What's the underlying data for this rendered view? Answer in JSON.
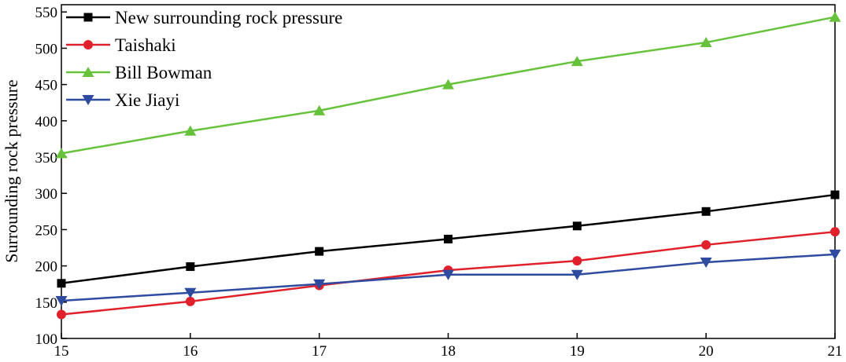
{
  "chart_data": {
    "type": "line",
    "title": "",
    "xlabel": "",
    "ylabel": "Surrounding rock pressure",
    "xlim": [
      15,
      21
    ],
    "ylim": [
      100,
      560
    ],
    "x": [
      15,
      16,
      17,
      18,
      19,
      20,
      21
    ],
    "x_tick_labels": [
      "15",
      "16",
      "17",
      "18",
      "19",
      "20",
      "21"
    ],
    "y_ticks": [
      100,
      150,
      200,
      250,
      300,
      350,
      400,
      450,
      500,
      550
    ],
    "y_tick_labels": [
      "100",
      "150",
      "200",
      "250",
      "300",
      "350",
      "400",
      "450",
      "500",
      "550"
    ],
    "grid": false,
    "legend_position": "top-left",
    "series": [
      {
        "name": "New surrounding rock pressure",
        "color": "#000000",
        "marker": "square",
        "values": [
          176,
          199,
          220,
          237,
          255,
          275,
          298
        ]
      },
      {
        "name": "Taishaki",
        "color": "#e0202a",
        "marker": "circle",
        "values": [
          133,
          151,
          173,
          194,
          207,
          229,
          247
        ]
      },
      {
        "name": "Bill Bowman",
        "color": "#66c23a",
        "marker": "triangle-up",
        "values": [
          355,
          386,
          414,
          450,
          482,
          508,
          543
        ]
      },
      {
        "name": "Xie Jiayi",
        "color": "#2e4ba0",
        "marker": "triangle-down",
        "values": [
          152,
          163,
          175,
          188,
          188,
          205,
          216
        ]
      }
    ]
  }
}
